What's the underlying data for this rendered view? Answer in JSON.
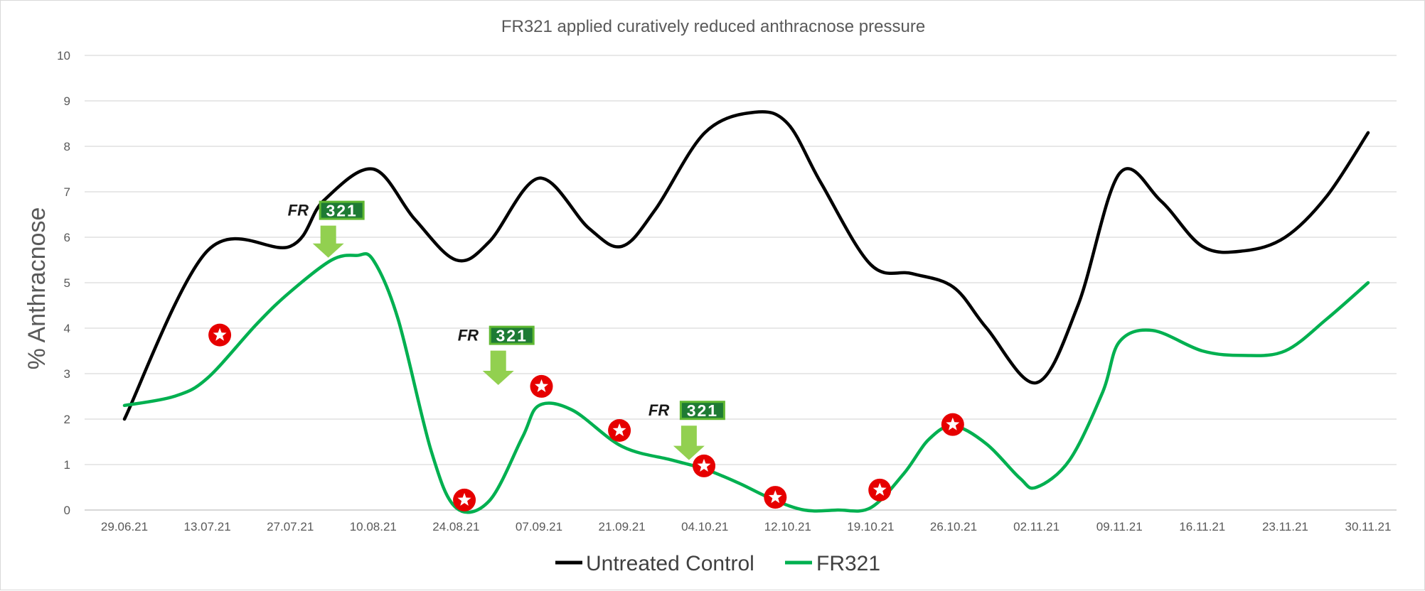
{
  "chart_data": {
    "type": "line",
    "title": "FR321 applied curatively reduced anthracnose pressure",
    "xlabel": "",
    "ylabel": "% Anthracnose",
    "ylim": [
      0,
      10
    ],
    "yticks": [
      "0",
      "1",
      "2",
      "3",
      "4",
      "5",
      "6",
      "7",
      "8",
      "9",
      "10"
    ],
    "grid": true,
    "legend_position": "bottom",
    "categories": [
      "29.06.21",
      "13.07.21",
      "27.07.21",
      "10.08.21",
      "24.08.21",
      "07.09.21",
      "21.09.21",
      "04.10.21",
      "12.10.21",
      "19.10.21",
      "26.10.21",
      "02.11.21",
      "09.11.21",
      "16.11.21",
      "23.11.21",
      "30.11.21"
    ],
    "series": [
      {
        "name": "Untreated Control",
        "color": "#000000",
        "x": [
          0,
          1,
          2,
          2.4,
          3,
          3.5,
          4,
          4.4,
          5,
          5.6,
          6,
          6.4,
          7,
          7.6,
          8,
          8.4,
          9,
          9.5,
          10,
          10.4,
          11,
          11.5,
          12,
          12.5,
          13,
          13.5,
          14,
          14.5,
          15
        ],
        "values": [
          2.0,
          5.7,
          5.8,
          6.8,
          7.5,
          6.4,
          5.5,
          5.9,
          7.3,
          6.2,
          5.8,
          6.6,
          8.3,
          8.75,
          8.5,
          7.2,
          5.4,
          5.2,
          4.9,
          4.0,
          2.8,
          4.5,
          7.4,
          6.8,
          5.8,
          5.7,
          6.0,
          6.9,
          8.3
        ]
      },
      {
        "name": "FR321",
        "color": "#00b050",
        "x": [
          0,
          0.6,
          1,
          1.6,
          2,
          2.5,
          2.8,
          3,
          3.3,
          3.7,
          4,
          4.4,
          4.8,
          5,
          5.4,
          6,
          6.6,
          7,
          7.4,
          7.8,
          8.2,
          8.6,
          9,
          9.4,
          9.7,
          10,
          10.4,
          10.8,
          11,
          11.4,
          11.8,
          12,
          12.4,
          13,
          13.5,
          14,
          14.5,
          15
        ],
        "values": [
          2.3,
          2.5,
          2.9,
          4.1,
          4.8,
          5.5,
          5.6,
          5.5,
          4.2,
          1.3,
          0.05,
          0.2,
          1.6,
          2.3,
          2.2,
          1.4,
          1.1,
          0.9,
          0.6,
          0.25,
          0.0,
          0.0,
          0.05,
          0.8,
          1.55,
          1.85,
          1.45,
          0.7,
          0.5,
          1.1,
          2.6,
          3.7,
          3.95,
          3.5,
          3.4,
          3.5,
          4.2,
          5.0
        ]
      }
    ],
    "application_markers": [
      {
        "logo_text_left": "FR",
        "logo_text_right": "321",
        "x": 2.45,
        "logo_y": 6.6,
        "arrow_tip_y": 5.55
      },
      {
        "logo_text_left": "FR",
        "logo_text_right": "321",
        "x": 4.5,
        "logo_y": 3.85,
        "arrow_tip_y": 2.75
      },
      {
        "logo_text_left": "FR",
        "logo_text_right": "321",
        "x": 6.8,
        "logo_y": 2.2,
        "arrow_tip_y": 1.1
      }
    ],
    "star_markers": [
      {
        "x": 1.15,
        "y": 3.85
      },
      {
        "x": 4.1,
        "y": 0.22
      },
      {
        "x": 5.03,
        "y": 2.72
      },
      {
        "x": 5.97,
        "y": 1.75
      },
      {
        "x": 6.99,
        "y": 0.97
      },
      {
        "x": 7.85,
        "y": 0.28
      },
      {
        "x": 9.11,
        "y": 0.44
      },
      {
        "x": 9.99,
        "y": 1.88
      }
    ]
  },
  "legend": {
    "items": [
      "Untreated Control",
      "FR321"
    ]
  },
  "colors": {
    "grid": "#d9d9d9",
    "axis": "#bfbfbf",
    "marker_star_bg": "#e60000",
    "logo_green": "#1e7b34",
    "logo_light_green": "#5fb832",
    "arrow_green": "#92d050"
  }
}
